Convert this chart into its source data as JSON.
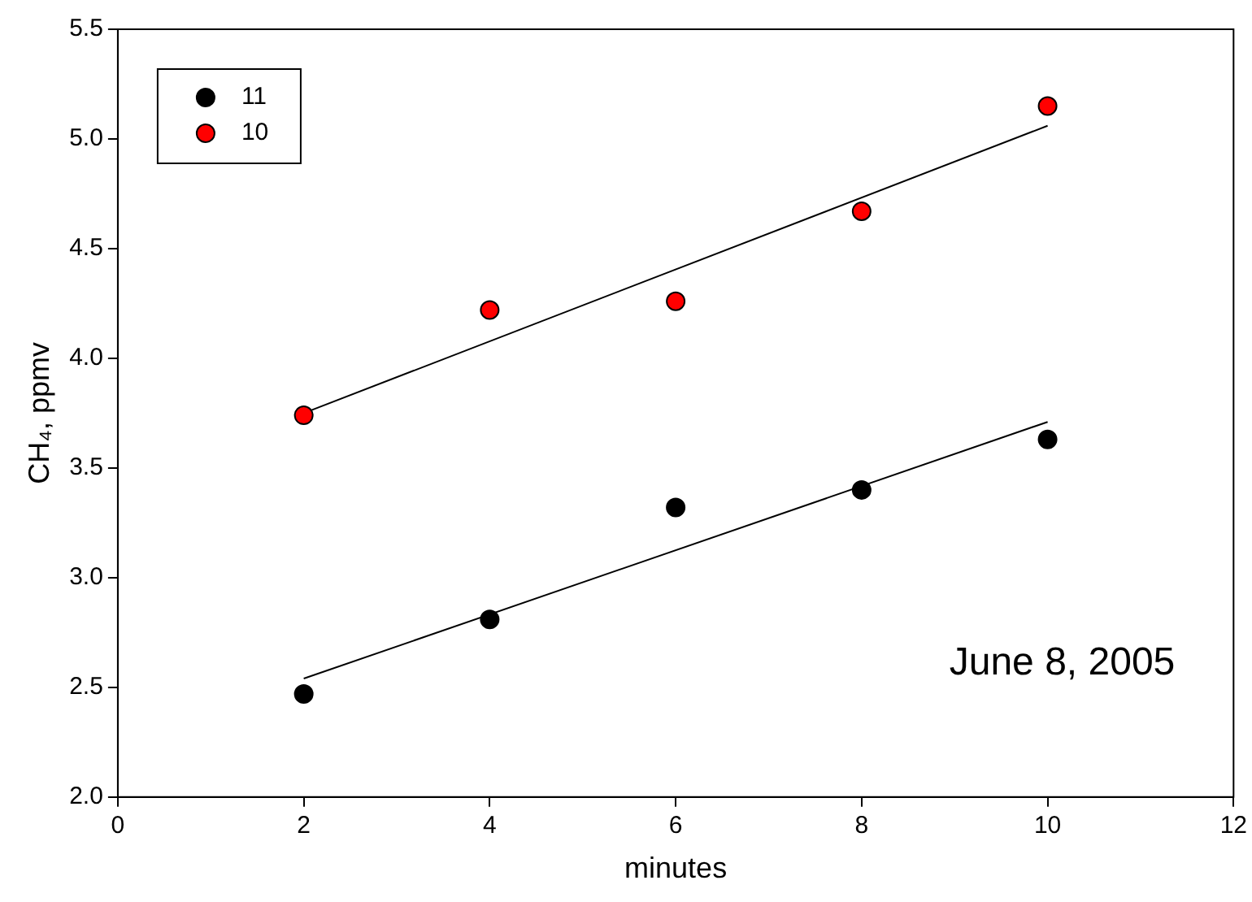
{
  "chart_data": {
    "type": "scatter",
    "xlabel": "minutes",
    "ylabel": "CH₄, ppmv",
    "xlim": [
      0,
      12
    ],
    "xticks": [
      0,
      2,
      4,
      6,
      8,
      10,
      12
    ],
    "ylim": [
      2.0,
      5.5
    ],
    "yticks": [
      {
        "value": 2.0,
        "label": "2.0"
      },
      {
        "value": 2.5,
        "label": "2.5"
      },
      {
        "value": 3.0,
        "label": "3.0"
      },
      {
        "value": 3.5,
        "label": "3.5"
      },
      {
        "value": 4.0,
        "label": "4.0"
      },
      {
        "value": 4.5,
        "label": "4.5"
      },
      {
        "value": 5.0,
        "label": "5.0"
      },
      {
        "value": 5.5,
        "label": "5.5"
      }
    ],
    "x": [
      2,
      4,
      6,
      8,
      10
    ],
    "series": [
      {
        "name": "11",
        "color": "#000000",
        "values": [
          2.47,
          2.81,
          3.32,
          3.4,
          3.63
        ]
      },
      {
        "name": "10",
        "color": "#ff0000",
        "values": [
          3.74,
          4.22,
          4.26,
          4.67,
          5.15
        ]
      },
      {
        "type": "line",
        "marker": "none",
        "color": "#000000",
        "values": [
          2.54,
          null,
          null,
          null,
          3.71
        ]
      },
      {
        "type": "line",
        "marker": "none",
        "color": "#000000",
        "values": [
          3.75,
          null,
          null,
          null,
          5.06
        ]
      }
    ],
    "marker": "circle",
    "line_style": "solid",
    "grid": false,
    "legend": "top left",
    "annotations": [
      "June 8, 2005"
    ]
  }
}
